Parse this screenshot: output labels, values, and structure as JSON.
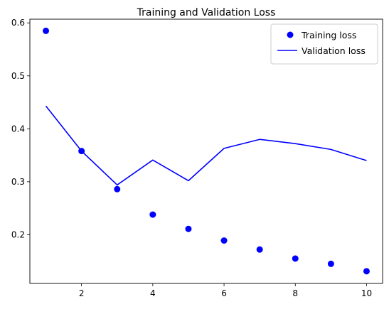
{
  "chart_data": {
    "type": "line",
    "title": "Training and Validation Loss",
    "xlabel": "",
    "ylabel": "",
    "xlim": [
      0.55,
      10.45
    ],
    "ylim": [
      0.108,
      0.607
    ],
    "x_ticks": [
      2,
      4,
      6,
      8,
      10
    ],
    "y_ticks": [
      0.2,
      0.3,
      0.4,
      0.5,
      0.6
    ],
    "x_tick_labels": [
      "2",
      "4",
      "6",
      "8",
      "10"
    ],
    "y_tick_labels": [
      "0.2",
      "0.3",
      "0.4",
      "0.5",
      "0.6"
    ],
    "x": [
      1,
      2,
      3,
      4,
      5,
      6,
      7,
      8,
      9,
      10
    ],
    "grid": false,
    "legend_position": "top-right",
    "series": [
      {
        "name": "Training loss",
        "style": "markers",
        "color": "#0000ff",
        "values": [
          0.585,
          0.358,
          0.286,
          0.238,
          0.211,
          0.189,
          0.172,
          0.155,
          0.145,
          0.131
        ]
      },
      {
        "name": "Validation loss",
        "style": "line",
        "color": "#0000ff",
        "values": [
          0.443,
          0.358,
          0.294,
          0.341,
          0.302,
          0.363,
          0.38,
          0.372,
          0.361,
          0.34
        ]
      }
    ]
  }
}
